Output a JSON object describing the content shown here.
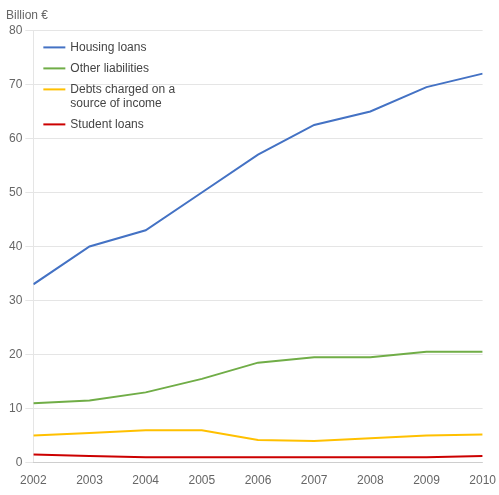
{
  "chart_data": {
    "type": "line",
    "ylabel": "Billion €",
    "x": [
      2002,
      2003,
      2004,
      2005,
      2006,
      2007,
      2008,
      2009,
      2010
    ],
    "xlim": [
      2002,
      2010
    ],
    "xticks": [
      2002,
      2003,
      2004,
      2005,
      2006,
      2007,
      2008,
      2009,
      2010
    ],
    "ylim": [
      0,
      80
    ],
    "yticks": [
      0,
      10,
      20,
      30,
      40,
      50,
      60,
      70,
      80
    ],
    "grid": true,
    "legend": "upper left",
    "series": [
      {
        "name": "Housing loans",
        "color": "#4472C4",
        "values": [
          33,
          40,
          43,
          50,
          57,
          62.5,
          65,
          69.5,
          72
        ]
      },
      {
        "name": "Other liabilities",
        "color": "#70AD47",
        "values": [
          11,
          11.5,
          13,
          15.5,
          18.5,
          19.5,
          19.5,
          20.5,
          20.5
        ]
      },
      {
        "name": "Debts charged on a\nsource of income",
        "color": "#FFC000",
        "values": [
          5,
          5.5,
          6,
          6,
          4.2,
          4,
          4.5,
          5,
          5.2
        ]
      },
      {
        "name": "Student loans",
        "color": "#CC0000",
        "values": [
          1.5,
          1.2,
          1.0,
          1.0,
          1.0,
          1.0,
          1.0,
          1.0,
          1.2
        ]
      }
    ]
  }
}
